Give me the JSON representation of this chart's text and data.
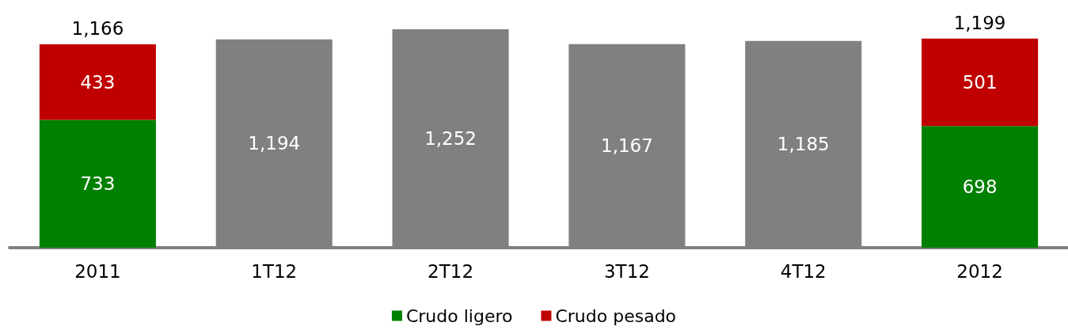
{
  "chart_data": {
    "type": "bar",
    "stacked": true,
    "categories": [
      "2011",
      "1T12",
      "2T12",
      "3T12",
      "4T12",
      "2012"
    ],
    "series": [
      {
        "name": "Crudo ligero",
        "color": "#008000",
        "values": [
          733,
          null,
          null,
          null,
          null,
          698
        ],
        "value_labels": [
          "733",
          null,
          null,
          null,
          null,
          "698"
        ]
      },
      {
        "name": "Crudo pesado",
        "color": "#c00000",
        "values": [
          433,
          null,
          null,
          null,
          null,
          501
        ],
        "value_labels": [
          "433",
          null,
          null,
          null,
          null,
          "501"
        ]
      },
      {
        "color": "#808080",
        "values": [
          null,
          1194,
          1252,
          1167,
          1185,
          null
        ],
        "value_labels": [
          null,
          "1,194",
          "1,252",
          "1,167",
          "1,185",
          null
        ]
      }
    ],
    "totals": [
      "1,166",
      null,
      null,
      null,
      null,
      "1,199"
    ],
    "legend": "bottom"
  }
}
